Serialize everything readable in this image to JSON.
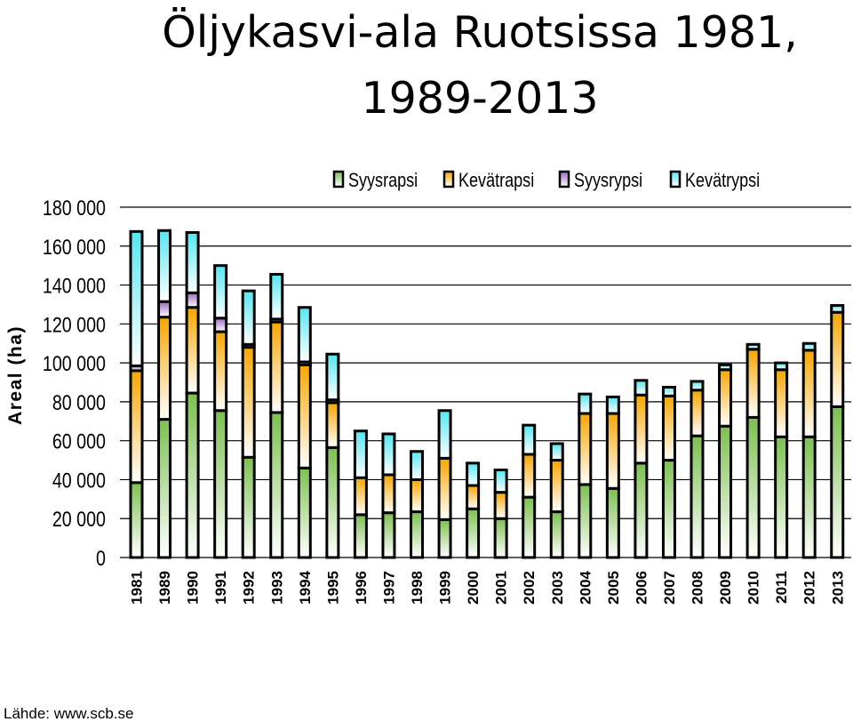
{
  "title": "Öljykasvi-ala Ruotsissa 1981, 1989-2013",
  "source": "Lähde: www.scb.se",
  "chart_data": {
    "type": "bar",
    "stacked": true,
    "ylabel": "Areal (ha)",
    "ylim": [
      0,
      180000
    ],
    "yticks": [
      0,
      20000,
      40000,
      60000,
      80000,
      100000,
      120000,
      140000,
      160000,
      180000
    ],
    "ytick_labels": [
      "0",
      "20 000",
      "40 000",
      "60 000",
      "80 000",
      "100 000",
      "120 000",
      "140 000",
      "160 000",
      "180 000"
    ],
    "grid": true,
    "legend_position": "top",
    "categories": [
      "1981",
      "1989",
      "1990",
      "1991",
      "1992",
      "1993",
      "1994",
      "1995",
      "1996",
      "1997",
      "1998",
      "1999",
      "2000",
      "2001",
      "2002",
      "2003",
      "2004",
      "2005",
      "2006",
      "2007",
      "2008",
      "2009",
      "2010",
      "2011",
      "2012",
      "2013"
    ],
    "series": [
      {
        "name": "Syysrapsi",
        "color": "#7cc050",
        "values": [
          38500,
          71000,
          84500,
          75500,
          51500,
          74500,
          46000,
          56500,
          22000,
          23000,
          23500,
          19500,
          25000,
          20000,
          31000,
          23500,
          37500,
          35500,
          48500,
          50000,
          62500,
          67500,
          72000,
          62000,
          62000,
          77500
        ]
      },
      {
        "name": "Kevätrapsi",
        "color": "#f7a600",
        "values": [
          57500,
          52500,
          44000,
          40500,
          56500,
          46500,
          53000,
          23000,
          19000,
          19500,
          16500,
          31500,
          12000,
          13500,
          22000,
          26500,
          36500,
          38500,
          35000,
          33000,
          23500,
          29000,
          35000,
          34500,
          44500,
          48500
        ]
      },
      {
        "name": "Syysrypsi",
        "color": "#9c66c8",
        "values": [
          2500,
          8000,
          7500,
          7000,
          1500,
          1500,
          1500,
          1500,
          0,
          0,
          0,
          0,
          0,
          0,
          0,
          0,
          0,
          0,
          0,
          0,
          0,
          0,
          0,
          0,
          0,
          0
        ]
      },
      {
        "name": "Kevätrypsi",
        "color": "#55e6f2",
        "values": [
          69000,
          36500,
          31000,
          27000,
          27500,
          23000,
          28000,
          23500,
          24000,
          21000,
          14500,
          24500,
          11500,
          11500,
          15000,
          8500,
          10000,
          8500,
          7500,
          4500,
          4500,
          2500,
          2500,
          3500,
          3500,
          3500
        ]
      }
    ]
  }
}
